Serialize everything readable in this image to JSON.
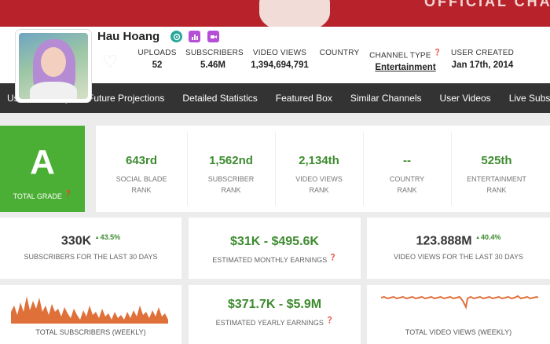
{
  "banner": {
    "text": "OFFICIAL CHAN"
  },
  "channel": {
    "name": "Hau Hoang"
  },
  "stats": [
    {
      "label": "UPLOADS",
      "value": "52"
    },
    {
      "label": "SUBSCRIBERS",
      "value": "5.46M"
    },
    {
      "label": "VIDEO VIEWS",
      "value": "1,394,694,791"
    },
    {
      "label": "COUNTRY",
      "value": ""
    },
    {
      "label": "CHANNEL TYPE",
      "value": "Entertainment"
    },
    {
      "label": "USER CREATED",
      "value": "Jan 17th, 2014"
    }
  ],
  "nav": [
    "User Summary",
    "Future Projections",
    "Detailed Statistics",
    "Featured Box",
    "Similar Channels",
    "User Videos",
    "Live Subscriber"
  ],
  "grade": {
    "letter": "A",
    "label": "TOTAL GRADE"
  },
  "ranks": [
    {
      "value": "643rd",
      "line1": "SOCIAL BLADE",
      "line2": "RANK"
    },
    {
      "value": "1,562nd",
      "line1": "SUBSCRIBER",
      "line2": "RANK"
    },
    {
      "value": "2,134th",
      "line1": "VIDEO VIEWS",
      "line2": "RANK"
    },
    {
      "value": "--",
      "line1": "COUNTRY",
      "line2": "RANK"
    },
    {
      "value": "525th",
      "line1": "ENTERTAINMENT",
      "line2": "RANK"
    }
  ],
  "metrics": {
    "subs30": {
      "value": "330K",
      "change": "43.5%",
      "label": "SUBSCRIBERS FOR THE LAST 30 DAYS"
    },
    "monthly": {
      "value": "$31K - $495.6K",
      "label": "ESTIMATED MONTHLY EARNINGS"
    },
    "views30": {
      "value": "123.888M",
      "change": "40.4%",
      "label": "VIDEO VIEWS FOR THE LAST 30 DAYS"
    },
    "yearly": {
      "value": "$371.7K - $5.9M",
      "label": "ESTIMATED YEARLY EARNINGS"
    }
  },
  "charts": {
    "subs_weekly_label": "TOTAL SUBSCRIBERS (WEEKLY)",
    "views_weekly_label": "TOTAL VIDEO VIEWS (WEEKLY)"
  },
  "colors": {
    "banner": "#b8232b",
    "green": "#3d8b2f",
    "grade_bg": "#4caf35",
    "nav_bg": "#333333",
    "chart_orange": "#e0703a"
  }
}
